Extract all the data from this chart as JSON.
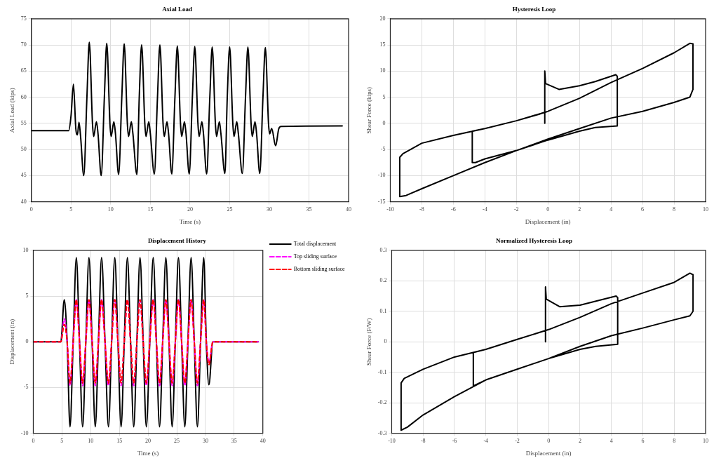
{
  "chart_data": [
    {
      "type": "line",
      "title": "Axial Load",
      "xlabel": "Time (s)",
      "ylabel": "Axial Load (kips)",
      "xlim": [
        0,
        40
      ],
      "xticks": [
        0,
        5,
        10,
        15,
        20,
        25,
        30,
        35,
        40
      ],
      "ylim": [
        40,
        75
      ],
      "yticks": [
        40,
        45,
        50,
        55,
        60,
        65,
        70,
        75
      ],
      "grid": true,
      "marker": "none",
      "line_style": "solid",
      "x": [
        0,
        4.7,
        5.0,
        5.3,
        5.6,
        5.8,
        6.0,
        6.2,
        6.6,
        7.0,
        7.3,
        7.7,
        7.85,
        8.2,
        8.4,
        8.8,
        9.2,
        9.5,
        9.9,
        10.05,
        10.4,
        10.6,
        11.0,
        11.4,
        11.7,
        12.1,
        12.25,
        12.6,
        12.8,
        13.3,
        13.6,
        13.9,
        14.3,
        14.45,
        14.8,
        15.0,
        15.5,
        15.9,
        16.2,
        16.6,
        16.75,
        17.1,
        17.3,
        17.7,
        18.1,
        18.4,
        18.8,
        18.95,
        19.3,
        19.5,
        19.9,
        20.3,
        20.6,
        21.0,
        21.15,
        21.5,
        21.7,
        22.1,
        22.5,
        22.8,
        23.2,
        23.35,
        23.7,
        23.9,
        24.4,
        24.7,
        25.0,
        25.4,
        25.55,
        25.9,
        26.1,
        26.6,
        27.0,
        27.3,
        27.7,
        27.85,
        28.2,
        28.4,
        28.8,
        29.2,
        29.5,
        29.9,
        30.05,
        30.3,
        30.8,
        31.2,
        31.5,
        39.2
      ],
      "series": [
        {
          "color": "#000000",
          "values": [
            53.6,
            53.6,
            56.5,
            62.5,
            54,
            52.8,
            55.2,
            52.5,
            45,
            60,
            70.5,
            55,
            52.5,
            55.3,
            53,
            45,
            60,
            70.3,
            55,
            52.5,
            55.3,
            53,
            45.2,
            60,
            70.2,
            55,
            52.5,
            55.3,
            53,
            45.2,
            60,
            70.0,
            55,
            52.5,
            55.3,
            53,
            45.3,
            60,
            70.0,
            55,
            52.5,
            55.3,
            53,
            45.3,
            60,
            69.8,
            55,
            52.5,
            55.3,
            53,
            45.3,
            60,
            69.7,
            55,
            52.5,
            55.3,
            53,
            45.3,
            60,
            69.6,
            55,
            52.5,
            55.3,
            53,
            45.4,
            60,
            69.6,
            55,
            52.5,
            55.3,
            53,
            45.4,
            60,
            69.6,
            55,
            52.5,
            55.3,
            53,
            45.4,
            60,
            69.5,
            55,
            53,
            54,
            50.7,
            54,
            54.4,
            54.5
          ]
        }
      ]
    },
    {
      "type": "line",
      "title": "Hysteresis Loop",
      "xlabel": "Displacement (in)",
      "ylabel": "Shear Force (kips)",
      "xlim": [
        -10,
        10
      ],
      "xticks": [
        -10,
        -8,
        -6,
        -4,
        -2,
        0,
        2,
        4,
        6,
        8,
        10
      ],
      "ylim": [
        -15,
        20
      ],
      "yticks": [
        -15,
        -10,
        -5,
        0,
        5,
        10,
        15,
        20
      ],
      "grid": true,
      "marker": "none",
      "line_style": "solid",
      "x": [
        -0.2,
        -0.2,
        -0.15,
        0.7,
        2,
        3,
        4.3,
        4.4,
        4.4,
        3,
        2,
        0,
        -2,
        -4,
        -4.6,
        -4.8,
        -4.8,
        -4,
        -2,
        -0.5,
        0,
        2,
        4,
        6,
        8,
        9,
        9.2,
        9.2,
        9,
        8,
        6,
        4,
        2,
        0,
        -2,
        -4,
        -6,
        -8,
        -9,
        -9.4,
        -9.4,
        -9.2,
        -8,
        -6,
        -4,
        -2,
        0
      ],
      "series": [
        {
          "color": "#000000",
          "values": [
            0,
            10,
            7.6,
            6.5,
            7.2,
            8,
            9.3,
            9,
            -0.5,
            -0.8,
            -1.5,
            -3.2,
            -5.2,
            -6.8,
            -7.5,
            -7.5,
            -1.5,
            -1,
            0.5,
            1.8,
            2.3,
            4.8,
            7.8,
            10.5,
            13.5,
            15.3,
            15.2,
            6.5,
            5,
            4,
            2.3,
            1,
            -1,
            -3,
            -5.2,
            -7.5,
            -10,
            -12.5,
            -13.8,
            -14,
            -6.5,
            -5.8,
            -3.8,
            -2.3,
            -1,
            0.5,
            2.3
          ]
        }
      ]
    },
    {
      "type": "line",
      "title": "Displacement History",
      "xlabel": "Time (s)",
      "ylabel": "Displacement (in)",
      "xlim": [
        0,
        40
      ],
      "xticks": [
        0,
        5,
        10,
        15,
        20,
        25,
        30,
        35,
        40
      ],
      "ylim": [
        -10,
        10
      ],
      "yticks": [
        -10,
        -5,
        0,
        5,
        10
      ],
      "grid": true,
      "marker": "none",
      "legend": "top right",
      "x": [
        0,
        4.8,
        5.4,
        5.9,
        6.4,
        6.95,
        7.5,
        8.05,
        8.6,
        9.15,
        9.7,
        10.25,
        10.8,
        11.35,
        11.9,
        12.5,
        13.1,
        13.65,
        14.2,
        14.75,
        15.3,
        15.85,
        16.4,
        16.95,
        17.5,
        18.05,
        18.6,
        19.15,
        19.7,
        20.3,
        20.9,
        21.45,
        22.0,
        22.55,
        23.1,
        23.65,
        24.2,
        24.75,
        25.3,
        25.85,
        26.4,
        26.95,
        27.5,
        28.05,
        28.6,
        29.15,
        29.7,
        30.15,
        30.6,
        31.3,
        39.2
      ],
      "series": [
        {
          "name": "Total displacement",
          "color": "#000000",
          "line_style": "solid",
          "values": [
            0,
            0,
            4.6,
            0,
            -9.3,
            0,
            9.2,
            0,
            -9.3,
            0,
            9.2,
            0,
            -9.3,
            0,
            9.2,
            0,
            -9.3,
            0,
            9.2,
            0,
            -9.3,
            0,
            9.2,
            0,
            -9.3,
            0,
            9.2,
            0,
            -9.3,
            0,
            9.2,
            0,
            -9.3,
            0,
            9.2,
            0,
            -9.3,
            0,
            9.2,
            0,
            -9.3,
            0,
            9.2,
            0,
            -9.3,
            0,
            9.2,
            0,
            -4.7,
            0,
            0
          ]
        },
        {
          "name": "Top sliding surface",
          "color": "#ff00ff",
          "line_style": "dashed",
          "values": [
            0,
            0,
            2.5,
            0,
            -4.8,
            0,
            4.6,
            0,
            -4.8,
            0,
            4.6,
            0,
            -4.8,
            0,
            4.6,
            0,
            -4.8,
            0,
            4.6,
            0,
            -4.8,
            0,
            4.6,
            0,
            -4.8,
            0,
            4.6,
            0,
            -4.8,
            0,
            4.6,
            0,
            -4.8,
            0,
            4.6,
            0,
            -4.8,
            0,
            4.6,
            0,
            -4.8,
            0,
            4.6,
            0,
            -4.8,
            0,
            4.6,
            0,
            -2.3,
            0,
            0
          ]
        },
        {
          "name": "Bottom sliding surface",
          "color": "#ff0000",
          "line_style": "dashed",
          "values": [
            0,
            0,
            1.9,
            0,
            -4.5,
            0,
            4.6,
            0,
            -4.5,
            0,
            4.6,
            0,
            -4.5,
            0,
            4.6,
            0,
            -4.5,
            0,
            4.6,
            0,
            -4.5,
            0,
            4.6,
            0,
            -4.5,
            0,
            4.6,
            0,
            -4.5,
            0,
            4.6,
            0,
            -4.5,
            0,
            4.6,
            0,
            -4.5,
            0,
            4.6,
            0,
            -4.5,
            0,
            4.6,
            0,
            -4.5,
            0,
            4.6,
            0,
            -2.5,
            0,
            0
          ]
        }
      ]
    },
    {
      "type": "line",
      "title": "Normalized Hysteresis Loop",
      "xlabel": "Displacement (in)",
      "ylabel": "Shear Force (F/W)",
      "xlim": [
        -10,
        10
      ],
      "xticks": [
        -10,
        -8,
        -6,
        -4,
        -2,
        0,
        2,
        4,
        6,
        8,
        10
      ],
      "ylim": [
        -0.3,
        0.3
      ],
      "yticks": [
        -0.3,
        -0.2,
        -0.1,
        0,
        0.1,
        0.2,
        0.3
      ],
      "grid": true,
      "marker": "none",
      "line_style": "solid",
      "x": [
        -0.2,
        -0.2,
        -0.15,
        0.7,
        2,
        4.3,
        4.4,
        4.4,
        3,
        2,
        0,
        -2,
        -4,
        -4.8,
        -4.8,
        -4,
        -2,
        0,
        2,
        4,
        6,
        8,
        9,
        9.2,
        9.2,
        9,
        8,
        6,
        4,
        2,
        0,
        -2,
        -4,
        -6,
        -8,
        -9,
        -9.4,
        -9.4,
        -9.2,
        -8,
        -6,
        -4,
        -2,
        0
      ],
      "series": [
        {
          "color": "#000000",
          "values": [
            0,
            0.18,
            0.14,
            0.115,
            0.12,
            0.15,
            0.145,
            -0.008,
            -0.015,
            -0.025,
            -0.055,
            -0.09,
            -0.125,
            -0.145,
            -0.035,
            -0.025,
            0.008,
            0.04,
            0.08,
            0.125,
            0.16,
            0.195,
            0.225,
            0.22,
            0.1,
            0.085,
            0.072,
            0.045,
            0.02,
            -0.015,
            -0.055,
            -0.09,
            -0.125,
            -0.18,
            -0.24,
            -0.28,
            -0.29,
            -0.135,
            -0.12,
            -0.09,
            -0.05,
            -0.025,
            0.008,
            0.04
          ]
        }
      ]
    }
  ]
}
